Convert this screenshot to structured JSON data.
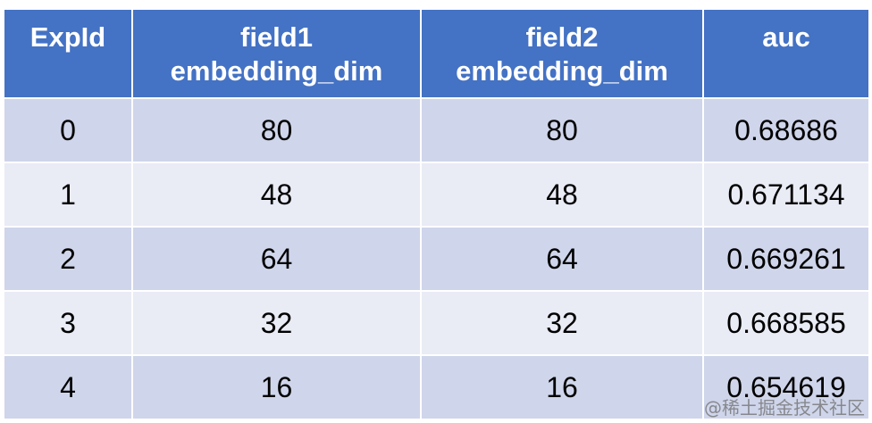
{
  "table": {
    "header": [
      "ExpId",
      "field1\nembedding_dim",
      "field2\nembedding_dim",
      "auc"
    ],
    "rows": [
      [
        0,
        80,
        80,
        0.68686
      ],
      [
        1,
        48,
        48,
        0.671134
      ],
      [
        2,
        64,
        64,
        0.669261
      ],
      [
        3,
        32,
        32,
        0.668585
      ],
      [
        4,
        16,
        16,
        0.654619
      ]
    ]
  },
  "watermark": "@稀土掘金技术社区"
}
